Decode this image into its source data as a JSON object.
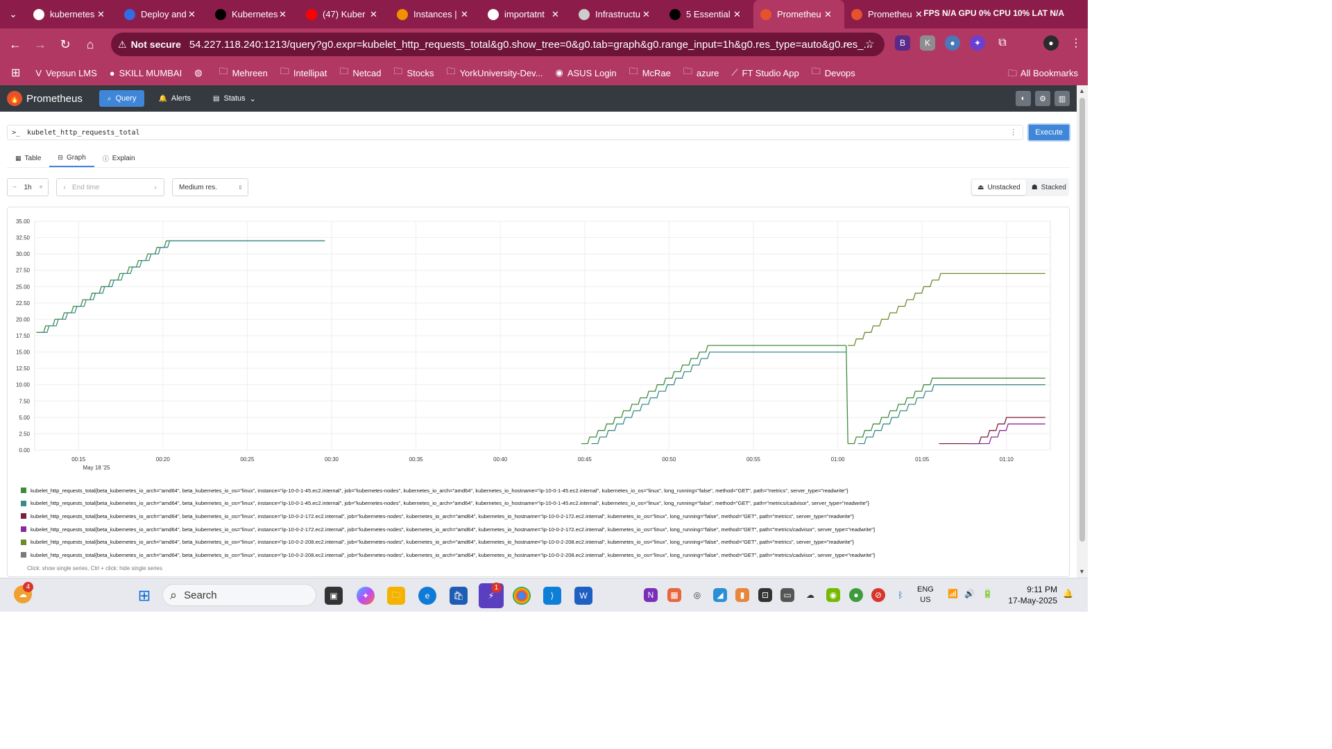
{
  "browser": {
    "tabs": [
      {
        "label": "kubernetes",
        "icon": "google-icon",
        "color": "#ffffff"
      },
      {
        "label": "Deploy and",
        "icon": "kubernetes-icon",
        "color": "#326ce5"
      },
      {
        "label": "Kubernetes",
        "icon": "chatgpt-icon",
        "color": "#000000"
      },
      {
        "label": "(47) Kuber",
        "icon": "youtube-icon",
        "color": "#ff0000"
      },
      {
        "label": "Instances |",
        "icon": "aws-icon",
        "color": "#f29100"
      },
      {
        "label": "importatnt",
        "icon": "google-icon",
        "color": "#ffffff"
      },
      {
        "label": "Infrastructu",
        "icon": "diagram-icon",
        "color": "#cccccc"
      },
      {
        "label": "5 Essential",
        "icon": "medium-icon",
        "color": "#000000"
      },
      {
        "label": "Prometheu",
        "icon": "prometheus-icon",
        "color": "#e6522c",
        "active": true
      },
      {
        "label": "Prometheu",
        "icon": "prometheus-icon",
        "color": "#e6522c"
      }
    ],
    "sys_stats": "FPS N/A GPU 0% CPU 10% LAT N/A",
    "not_secure": "Not secure",
    "url": "54.227.118.240:1213/query?g0.expr=kubelet_http_requests_total&g0.show_tree=0&g0.tab=graph&g0.range_input=1h&g0.res_type=auto&g0.res_...",
    "bookmarks": [
      "Vepsun LMS",
      "SKILL MUMBAI",
      "",
      "Mehreen",
      "Intellipat",
      "Netcad",
      "Stocks",
      "YorkUniversity-Dev...",
      "ASUS Login",
      "McRae",
      "azure",
      "FT Studio App",
      "Devops"
    ],
    "all_bookmarks": "All Bookmarks"
  },
  "prometheus": {
    "brand": "Prometheus",
    "nav": {
      "query": "Query",
      "alerts": "Alerts",
      "status": "Status"
    },
    "query_expr": "kubelet_http_requests_total",
    "execute": "Execute",
    "tabs": {
      "table": "Table",
      "graph": "Graph",
      "explain": "Explain"
    },
    "range": "1h",
    "end_time_placeholder": "End time",
    "resolution": "Medium res.",
    "unstacked": "Unstacked",
    "stacked": "Stacked",
    "legend_hint": "Click: show single series, Ctrl + click: hide single series"
  },
  "chart_data": {
    "type": "line",
    "x_unit": "minutes",
    "x_ticks": [
      "00:15",
      "00:20",
      "00:25",
      "00:30",
      "00:35",
      "00:40",
      "00:45",
      "00:50",
      "00:55",
      "01:00",
      "01:05",
      "01:10"
    ],
    "x_tick_values": [
      15,
      20,
      25,
      30,
      35,
      40,
      45,
      50,
      55,
      60,
      65,
      70
    ],
    "date_label": "May 18 '25",
    "xlim": [
      12.4,
      72.6
    ],
    "ylim": [
      0,
      35
    ],
    "y_ticks": [
      "0.00",
      "2.50",
      "5.00",
      "7.50",
      "10.00",
      "12.50",
      "15.00",
      "17.50",
      "20.00",
      "22.50",
      "25.00",
      "27.50",
      "30.00",
      "32.50",
      "35.00"
    ],
    "grid": true,
    "series": [
      {
        "name": "kubelet_http_requests_total{beta_kubernetes_io_arch=\"amd64\", beta_kubernetes_io_os=\"linux\", instance=\"ip-10-0-1-45.ec2.internal\", job=\"kubernetes-nodes\", kubernetes_io_arch=\"amd64\", kubernetes_io_hostname=\"ip-10-0-1-45.ec2.internal\", kubernetes_io_os=\"linux\", long_running=\"false\", method=\"GET\", path=\"metrics\", server_type=\"readwrite\"}",
        "color": "#3d8b3d",
        "segments": [
          {
            "start": 12.5,
            "y0": 18,
            "step_minutes": 0.55,
            "y_end": 32,
            "hold_to": 29.6
          },
          {
            "start": 44.8,
            "y0": 1,
            "step_minutes": 0.5,
            "y_end": 16,
            "hold_to": 60.5
          },
          {
            "start": 60.6,
            "y0": 1,
            "step_minutes": 0.5,
            "y_end": 11,
            "hold_to": 72.3
          }
        ]
      },
      {
        "name": "kubelet_http_requests_total{beta_kubernetes_io_arch=\"amd64\", beta_kubernetes_io_os=\"linux\", instance=\"ip-10-0-1-45.ec2.internal\", job=\"kubernetes-nodes\", kubernetes_io_arch=\"amd64\", kubernetes_io_hostname=\"ip-10-0-1-45.ec2.internal\", kubernetes_io_os=\"linux\", long_running=\"false\", method=\"GET\", path=\"metrics/cadvisor\", server_type=\"readwrite\"}",
        "color": "#3a8a8a",
        "segments": [
          {
            "start": 12.7,
            "y0": 18,
            "step_minutes": 0.55,
            "y_end": 32,
            "hold_to": 29.6
          },
          {
            "start": 45.4,
            "y0": 1,
            "step_minutes": 0.5,
            "y_end": 15,
            "hold_to": 60.5
          },
          {
            "start": 61.2,
            "y0": 1,
            "step_minutes": 0.5,
            "y_end": 10,
            "hold_to": 72.3
          }
        ]
      },
      {
        "name": "kubelet_http_requests_total{beta_kubernetes_io_arch=\"amd64\", beta_kubernetes_io_os=\"linux\", instance=\"ip-10-0-2-172.ec2.internal\", job=\"kubernetes-nodes\", kubernetes_io_arch=\"amd64\", kubernetes_io_hostname=\"ip-10-0-2-172.ec2.internal\", kubernetes_io_os=\"linux\", long_running=\"false\", method=\"GET\", path=\"metrics\", server_type=\"readwrite\"}",
        "color": "#7a1f3d",
        "segments": [
          {
            "start": 66.0,
            "y0": 1,
            "step_minutes": 0.5,
            "y_end": 5,
            "hold_to": 72.3,
            "flat_until": 68.0
          }
        ]
      },
      {
        "name": "kubelet_http_requests_total{beta_kubernetes_io_arch=\"amd64\", beta_kubernetes_io_os=\"linux\", instance=\"ip-10-0-2-172.ec2.internal\", job=\"kubernetes-nodes\", kubernetes_io_arch=\"amd64\", kubernetes_io_hostname=\"ip-10-0-2-172.ec2.internal\", kubernetes_io_os=\"linux\", long_running=\"false\", method=\"GET\", path=\"metrics/cadvisor\", server_type=\"readwrite\"}",
        "color": "#8a2a9a",
        "segments": [
          {
            "start": 67.8,
            "y0": 1,
            "step_minutes": 0.5,
            "y_end": 4,
            "hold_to": 72.3,
            "flat_until": 68.6
          }
        ]
      },
      {
        "name": "kubelet_http_requests_total{beta_kubernetes_io_arch=\"amd64\", beta_kubernetes_io_os=\"linux\", instance=\"ip-10-0-2-208.ec2.internal\", job=\"kubernetes-nodes\", kubernetes_io_arch=\"amd64\", kubernetes_io_hostname=\"ip-10-0-2-208.ec2.internal\", kubernetes_io_os=\"linux\", long_running=\"false\", method=\"GET\", path=\"metrics\", server_type=\"readwrite\"}",
        "color": "#6e8a2a",
        "segments": [
          {
            "start": 60.6,
            "y0": 16,
            "step_minutes": 0.5,
            "y_end": 27,
            "hold_to": 72.3
          }
        ]
      },
      {
        "name": "kubelet_http_requests_total{beta_kubernetes_io_arch=\"amd64\", beta_kubernetes_io_os=\"linux\", instance=\"ip-10-0-2-208.ec2.internal\", job=\"kubernetes-nodes\", kubernetes_io_arch=\"amd64\", kubernetes_io_hostname=\"ip-10-0-2-208.ec2.internal\", kubernetes_io_os=\"linux\", long_running=\"false\", method=\"GET\", path=\"metrics/cadvisor\", server_type=\"readwrite\"}",
        "color": "#7a7a7a",
        "segments": []
      }
    ]
  },
  "taskbar": {
    "search_label": "Search",
    "lang": "ENG",
    "region": "US",
    "time": "9:11 PM",
    "date": "17-May-2025",
    "weather_badge": "4",
    "notif_badge": "1"
  }
}
